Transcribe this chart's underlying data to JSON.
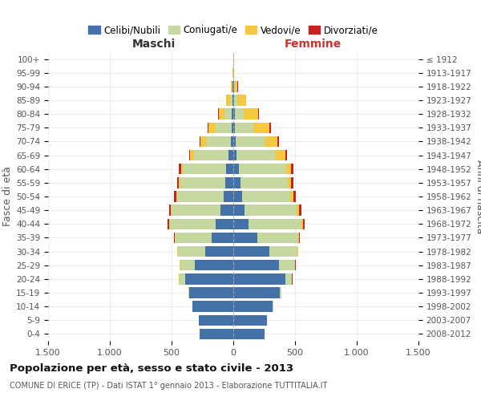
{
  "age_groups": [
    "0-4",
    "5-9",
    "10-14",
    "15-19",
    "20-24",
    "25-29",
    "30-34",
    "35-39",
    "40-44",
    "45-49",
    "50-54",
    "55-59",
    "60-64",
    "65-69",
    "70-74",
    "75-79",
    "80-84",
    "85-89",
    "90-94",
    "95-99",
    "100+"
  ],
  "birth_years": [
    "2008-2012",
    "2003-2007",
    "1998-2002",
    "1993-1997",
    "1988-1992",
    "1983-1987",
    "1978-1982",
    "1973-1977",
    "1968-1972",
    "1963-1967",
    "1958-1962",
    "1953-1957",
    "1948-1952",
    "1943-1947",
    "1938-1942",
    "1933-1937",
    "1928-1932",
    "1923-1927",
    "1918-1922",
    "1913-1917",
    "≤ 1912"
  ],
  "colors": {
    "celibe": "#4472a8",
    "coniugato": "#c5d8a0",
    "vedovo": "#f5c842",
    "divorziato": "#cc2020"
  },
  "male": {
    "celibe": [
      270,
      280,
      330,
      355,
      390,
      310,
      230,
      175,
      140,
      105,
      80,
      68,
      58,
      38,
      22,
      16,
      10,
      6,
      4,
      2,
      2
    ],
    "coniugato": [
      0,
      0,
      2,
      10,
      48,
      120,
      220,
      295,
      375,
      395,
      375,
      362,
      352,
      282,
      202,
      130,
      60,
      20,
      5,
      0,
      0
    ],
    "vedovo": [
      0,
      0,
      0,
      0,
      2,
      2,
      2,
      2,
      3,
      5,
      8,
      10,
      15,
      30,
      45,
      55,
      50,
      30,
      10,
      2,
      0
    ],
    "divorziato": [
      0,
      0,
      0,
      0,
      2,
      3,
      5,
      8,
      12,
      12,
      15,
      15,
      15,
      10,
      5,
      5,
      3,
      2,
      0,
      0,
      0
    ]
  },
  "female": {
    "nubile": [
      255,
      272,
      320,
      378,
      420,
      370,
      290,
      195,
      122,
      90,
      72,
      60,
      45,
      28,
      18,
      12,
      10,
      8,
      5,
      3,
      2
    ],
    "coniugata": [
      0,
      0,
      2,
      12,
      55,
      130,
      230,
      330,
      432,
      425,
      392,
      382,
      382,
      312,
      232,
      152,
      72,
      25,
      5,
      0,
      0
    ],
    "vedova": [
      0,
      0,
      0,
      0,
      2,
      3,
      3,
      5,
      8,
      15,
      20,
      25,
      40,
      80,
      110,
      130,
      120,
      70,
      25,
      5,
      2
    ],
    "divorziata": [
      0,
      0,
      0,
      0,
      2,
      3,
      5,
      10,
      15,
      20,
      25,
      20,
      20,
      12,
      10,
      8,
      5,
      4,
      2,
      0,
      0
    ]
  },
  "xlim": 1500,
  "title": "Popolazione per età, sesso e stato civile - 2013",
  "subtitle": "COMUNE DI ERICE (TP) - Dati ISTAT 1° gennaio 2013 - Elaborazione TUTTITALIA.IT",
  "ylabel_left": "Fasce di età",
  "ylabel_right": "Anni di nascita",
  "xlabel_left": "Maschi",
  "xlabel_right": "Femmine"
}
